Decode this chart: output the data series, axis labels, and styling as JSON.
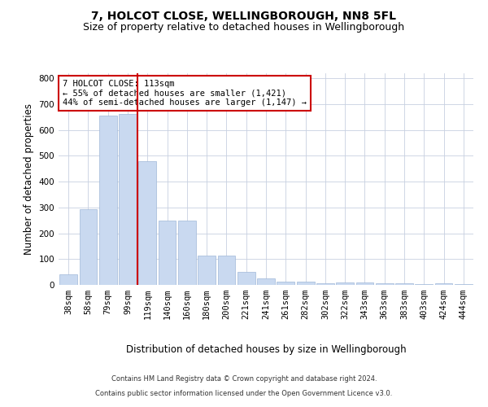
{
  "title": "7, HOLCOT CLOSE, WELLINGBOROUGH, NN8 5FL",
  "subtitle": "Size of property relative to detached houses in Wellingborough",
  "xlabel": "Distribution of detached houses by size in Wellingborough",
  "ylabel": "Number of detached properties",
  "annotation_line1": "7 HOLCOT CLOSE: 113sqm",
  "annotation_line2": "← 55% of detached houses are smaller (1,421)",
  "annotation_line3": "44% of semi-detached houses are larger (1,147) →",
  "footer1": "Contains HM Land Registry data © Crown copyright and database right 2024.",
  "footer2": "Contains public sector information licensed under the Open Government Licence v3.0.",
  "categories": [
    "38sqm",
    "58sqm",
    "79sqm",
    "99sqm",
    "119sqm",
    "140sqm",
    "160sqm",
    "180sqm",
    "200sqm",
    "221sqm",
    "241sqm",
    "261sqm",
    "282sqm",
    "302sqm",
    "322sqm",
    "343sqm",
    "363sqm",
    "383sqm",
    "403sqm",
    "424sqm",
    "444sqm"
  ],
  "values": [
    42,
    293,
    655,
    662,
    478,
    250,
    250,
    113,
    113,
    50,
    25,
    13,
    13,
    5,
    8,
    8,
    5,
    5,
    3,
    5,
    3
  ],
  "bar_color": "#c9d9f0",
  "bar_edge_color": "#a0b8d8",
  "red_line_index": 4,
  "red_line_color": "#cc0000",
  "annotation_box_color": "#ffffff",
  "annotation_box_edge_color": "#cc0000",
  "background_color": "#ffffff",
  "grid_color": "#c8d0e0",
  "title_fontsize": 10,
  "subtitle_fontsize": 9,
  "axis_label_fontsize": 8.5,
  "tick_fontsize": 7.5,
  "annotation_fontsize": 7.5,
  "footer_fontsize": 6,
  "ylim": [
    0,
    820
  ],
  "yticks": [
    0,
    100,
    200,
    300,
    400,
    500,
    600,
    700,
    800
  ]
}
